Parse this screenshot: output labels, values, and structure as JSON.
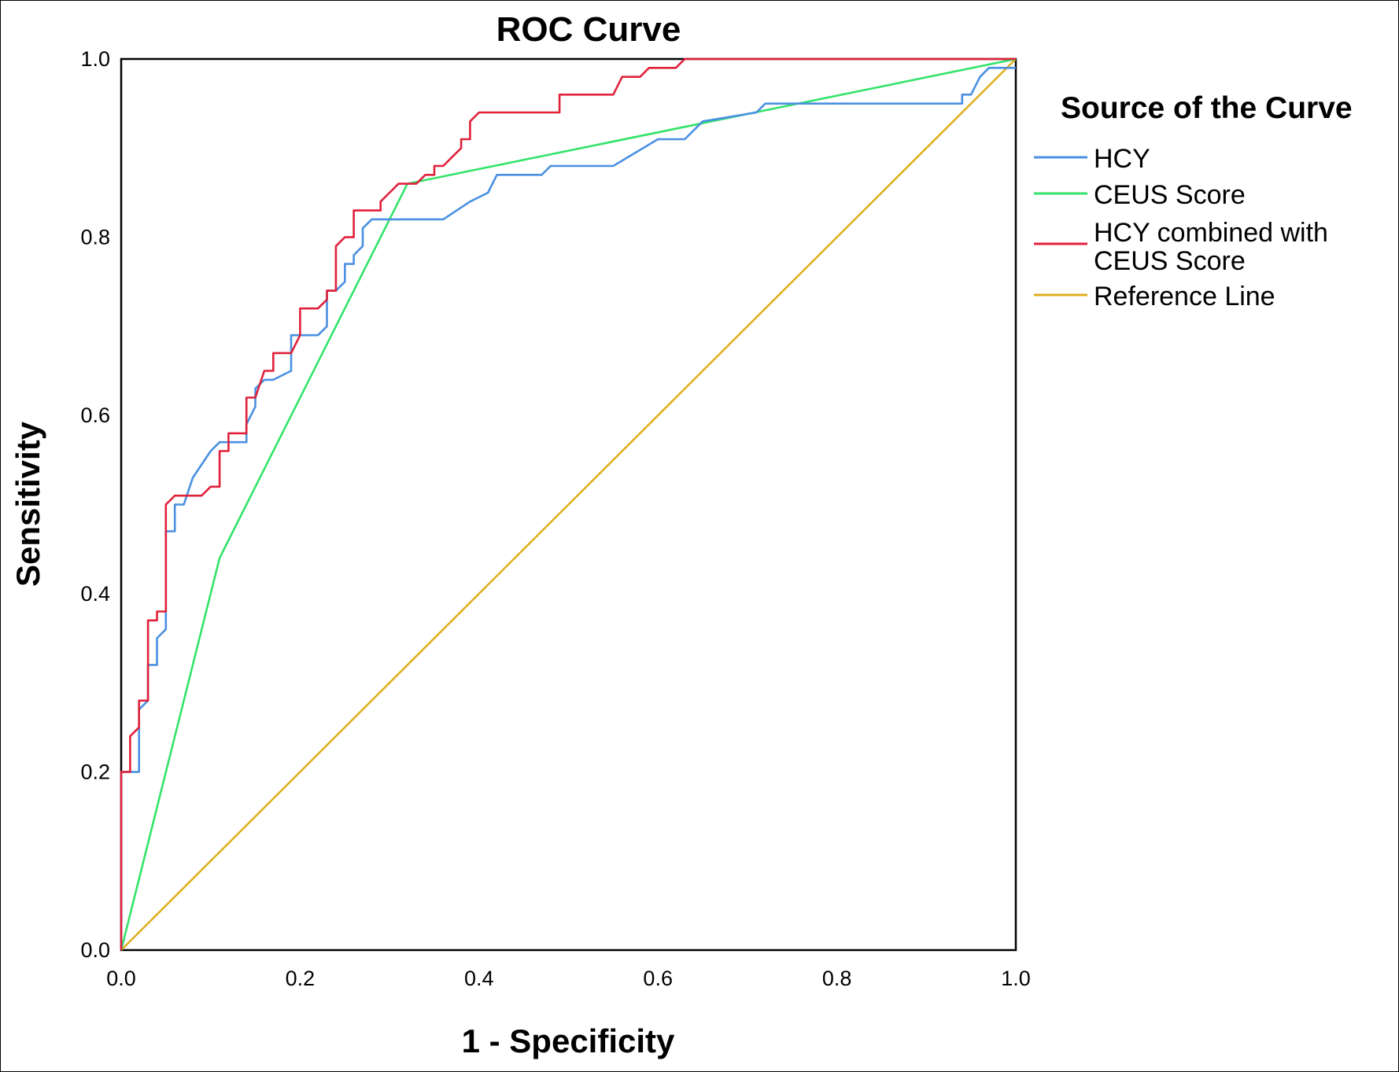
{
  "chart_data": {
    "type": "line",
    "title": "ROC Curve",
    "xlabel": "1 - Specificity",
    "ylabel": "Sensitivity",
    "xlim": [
      0,
      1
    ],
    "ylim": [
      0,
      1
    ],
    "x_ticks": [
      "0.0",
      "0.2",
      "0.4",
      "0.6",
      "0.8",
      "1.0"
    ],
    "y_ticks": [
      "0.0",
      "0.2",
      "0.4",
      "0.6",
      "0.8",
      "1.0"
    ],
    "grid": false,
    "legend": {
      "title": "Source of the Curve",
      "position": "right"
    },
    "series": [
      {
        "name": "HCY",
        "color": "#4a90e2",
        "points": [
          [
            0.0,
            0.0
          ],
          [
            0.0,
            0.2
          ],
          [
            0.02,
            0.2
          ],
          [
            0.02,
            0.27
          ],
          [
            0.03,
            0.28
          ],
          [
            0.03,
            0.32
          ],
          [
            0.04,
            0.32
          ],
          [
            0.04,
            0.35
          ],
          [
            0.05,
            0.36
          ],
          [
            0.05,
            0.47
          ],
          [
            0.06,
            0.47
          ],
          [
            0.06,
            0.5
          ],
          [
            0.07,
            0.5
          ],
          [
            0.08,
            0.53
          ],
          [
            0.1,
            0.56
          ],
          [
            0.11,
            0.57
          ],
          [
            0.14,
            0.57
          ],
          [
            0.14,
            0.59
          ],
          [
            0.15,
            0.61
          ],
          [
            0.15,
            0.63
          ],
          [
            0.16,
            0.64
          ],
          [
            0.17,
            0.64
          ],
          [
            0.19,
            0.65
          ],
          [
            0.19,
            0.69
          ],
          [
            0.22,
            0.69
          ],
          [
            0.23,
            0.7
          ],
          [
            0.23,
            0.74
          ],
          [
            0.24,
            0.74
          ],
          [
            0.25,
            0.75
          ],
          [
            0.25,
            0.77
          ],
          [
            0.26,
            0.77
          ],
          [
            0.26,
            0.78
          ],
          [
            0.27,
            0.79
          ],
          [
            0.27,
            0.81
          ],
          [
            0.28,
            0.82
          ],
          [
            0.36,
            0.82
          ],
          [
            0.39,
            0.84
          ],
          [
            0.41,
            0.85
          ],
          [
            0.42,
            0.87
          ],
          [
            0.47,
            0.87
          ],
          [
            0.48,
            0.88
          ],
          [
            0.55,
            0.88
          ],
          [
            0.6,
            0.91
          ],
          [
            0.63,
            0.91
          ],
          [
            0.65,
            0.93
          ],
          [
            0.71,
            0.94
          ],
          [
            0.72,
            0.95
          ],
          [
            0.75,
            0.95
          ],
          [
            0.76,
            0.95
          ],
          [
            0.94,
            0.95
          ],
          [
            0.94,
            0.96
          ],
          [
            0.95,
            0.96
          ],
          [
            0.96,
            0.98
          ],
          [
            0.97,
            0.99
          ],
          [
            1.0,
            0.99
          ]
        ]
      },
      {
        "name": "CEUS Score",
        "color": "#33e36a",
        "points": [
          [
            0.0,
            0.0
          ],
          [
            0.11,
            0.44
          ],
          [
            0.32,
            0.86
          ],
          [
            1.0,
            1.0
          ]
        ]
      },
      {
        "name": "HCY combined with CEUS Score",
        "color": "#e0213b",
        "points": [
          [
            0.0,
            0.0
          ],
          [
            0.0,
            0.2
          ],
          [
            0.01,
            0.2
          ],
          [
            0.01,
            0.24
          ],
          [
            0.02,
            0.25
          ],
          [
            0.02,
            0.28
          ],
          [
            0.03,
            0.28
          ],
          [
            0.03,
            0.37
          ],
          [
            0.04,
            0.37
          ],
          [
            0.04,
            0.38
          ],
          [
            0.05,
            0.38
          ],
          [
            0.05,
            0.5
          ],
          [
            0.06,
            0.51
          ],
          [
            0.09,
            0.51
          ],
          [
            0.1,
            0.52
          ],
          [
            0.11,
            0.52
          ],
          [
            0.11,
            0.56
          ],
          [
            0.12,
            0.56
          ],
          [
            0.12,
            0.58
          ],
          [
            0.14,
            0.58
          ],
          [
            0.14,
            0.62
          ],
          [
            0.15,
            0.62
          ],
          [
            0.16,
            0.65
          ],
          [
            0.17,
            0.65
          ],
          [
            0.17,
            0.67
          ],
          [
            0.19,
            0.67
          ],
          [
            0.2,
            0.69
          ],
          [
            0.2,
            0.72
          ],
          [
            0.22,
            0.72
          ],
          [
            0.23,
            0.73
          ],
          [
            0.23,
            0.74
          ],
          [
            0.24,
            0.74
          ],
          [
            0.24,
            0.79
          ],
          [
            0.25,
            0.8
          ],
          [
            0.26,
            0.8
          ],
          [
            0.26,
            0.83
          ],
          [
            0.29,
            0.83
          ],
          [
            0.29,
            0.84
          ],
          [
            0.3,
            0.85
          ],
          [
            0.31,
            0.86
          ],
          [
            0.33,
            0.86
          ],
          [
            0.34,
            0.87
          ],
          [
            0.35,
            0.87
          ],
          [
            0.35,
            0.88
          ],
          [
            0.36,
            0.88
          ],
          [
            0.37,
            0.89
          ],
          [
            0.38,
            0.9
          ],
          [
            0.38,
            0.91
          ],
          [
            0.39,
            0.91
          ],
          [
            0.39,
            0.93
          ],
          [
            0.4,
            0.94
          ],
          [
            0.49,
            0.94
          ],
          [
            0.49,
            0.96
          ],
          [
            0.55,
            0.96
          ],
          [
            0.56,
            0.98
          ],
          [
            0.58,
            0.98
          ],
          [
            0.59,
            0.99
          ],
          [
            0.62,
            0.99
          ],
          [
            0.63,
            1.0
          ],
          [
            0.89,
            1.0
          ],
          [
            1.0,
            1.0
          ]
        ]
      },
      {
        "name": "Reference Line",
        "color": "#e0b020",
        "points": [
          [
            0.0,
            0.0
          ],
          [
            1.0,
            1.0
          ]
        ]
      }
    ]
  },
  "legend_labels": {
    "hcy": "HCY",
    "ceus": "CEUS Score",
    "combined_line1": "HCY combined with",
    "combined_line2": "CEUS Score",
    "reference": "Reference Line"
  }
}
